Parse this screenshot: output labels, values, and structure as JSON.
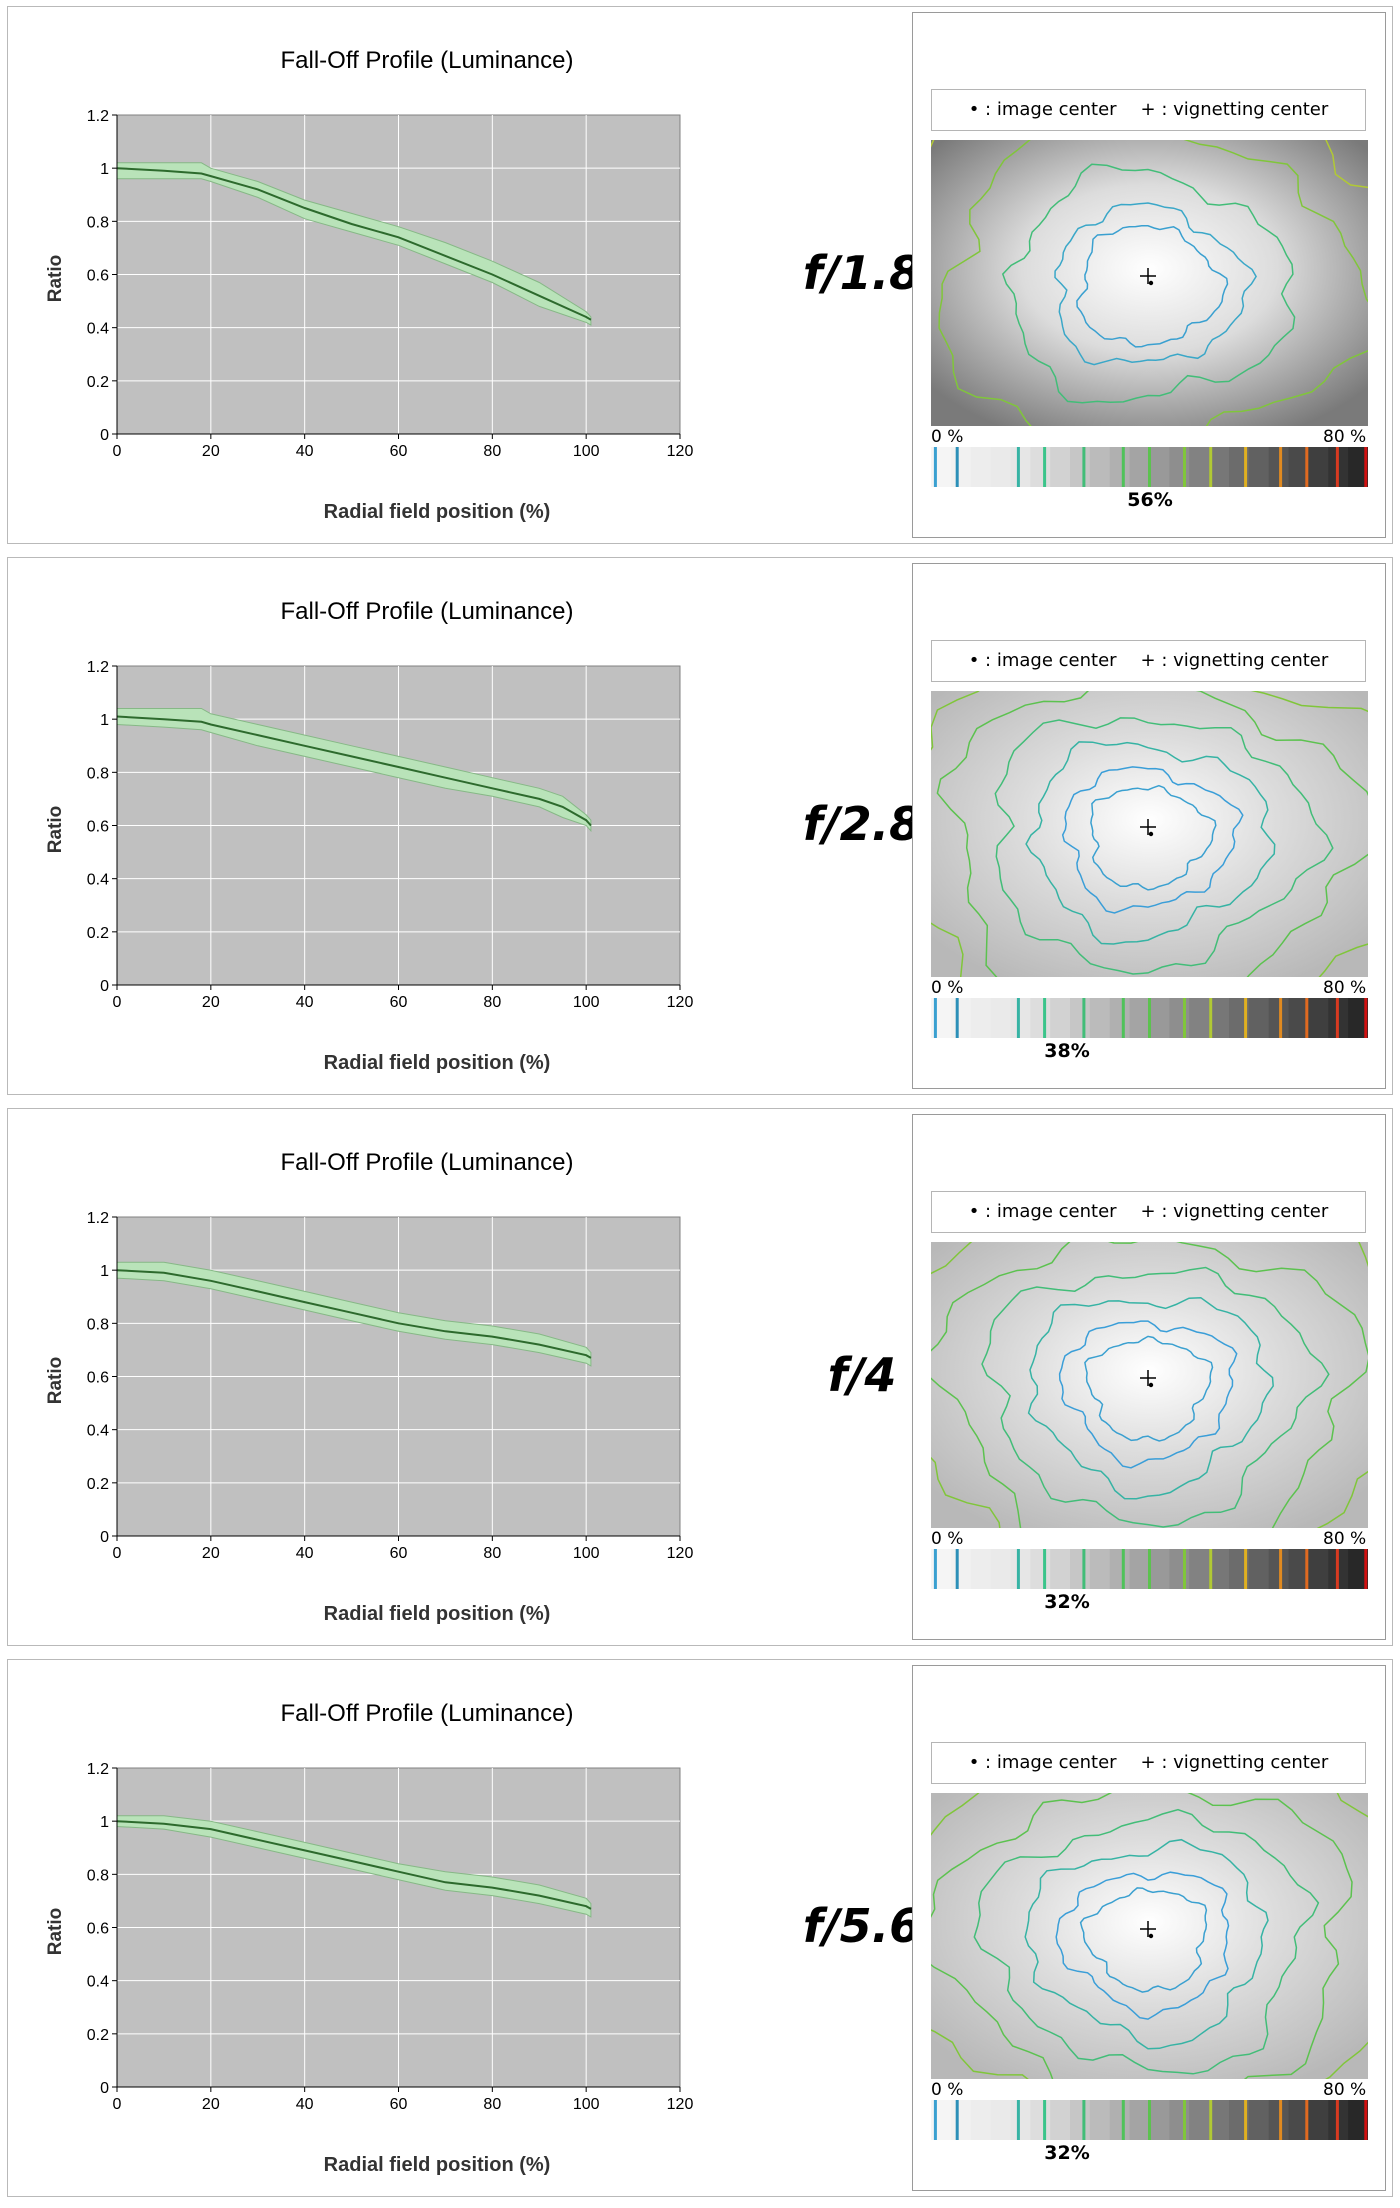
{
  "legend": {
    "image_center": "• : image center",
    "vignetting_center": "+ : vignetting center"
  },
  "colorbar": {
    "min_label": "0 %",
    "max_label": "80 %"
  },
  "colors": {
    "plot_bg": "#c0c0c0",
    "band": "#b9e3b9",
    "line": "#2d6a2d",
    "gridline": "#ffffff"
  },
  "panels": [
    {
      "aperture": "f/1.8",
      "vignetting_percent": "56%"
    },
    {
      "aperture": "f/2.8",
      "vignetting_percent": "38%"
    },
    {
      "aperture": "f/4",
      "vignetting_percent": "32%"
    },
    {
      "aperture": "f/5.6",
      "vignetting_percent": "32%"
    }
  ],
  "chart_data": [
    {
      "type": "line",
      "title": "Fall-Off Profile (Luminance)",
      "xlabel": "Radial field position (%)",
      "ylabel": "Ratio",
      "xlim": [
        0,
        120
      ],
      "ylim": [
        0,
        1.2
      ],
      "xticks": [
        0,
        20,
        40,
        60,
        80,
        100,
        120
      ],
      "yticks": [
        0,
        0.2,
        0.4,
        0.6,
        0.8,
        1,
        1.2
      ],
      "grid": true,
      "x": [
        0,
        10,
        18,
        20,
        30,
        40,
        50,
        60,
        70,
        80,
        90,
        100,
        101
      ],
      "series": [
        {
          "values": [
            1.0,
            0.99,
            0.98,
            0.97,
            0.92,
            0.85,
            0.79,
            0.74,
            0.67,
            0.6,
            0.52,
            0.44,
            0.43
          ]
        },
        {
          "values": [
            1.02,
            1.02,
            1.02,
            1.0,
            0.95,
            0.88,
            0.83,
            0.78,
            0.72,
            0.65,
            0.57,
            0.46,
            0.44
          ]
        },
        {
          "values": [
            0.96,
            0.96,
            0.96,
            0.95,
            0.89,
            0.81,
            0.76,
            0.71,
            0.64,
            0.57,
            0.48,
            0.42,
            0.41
          ]
        }
      ]
    },
    {
      "type": "line",
      "title": "Fall-Off Profile (Luminance)",
      "xlabel": "Radial field position (%)",
      "ylabel": "Ratio",
      "xlim": [
        0,
        120
      ],
      "ylim": [
        0,
        1.2
      ],
      "xticks": [
        0,
        20,
        40,
        60,
        80,
        100,
        120
      ],
      "yticks": [
        0,
        0.2,
        0.4,
        0.6,
        0.8,
        1,
        1.2
      ],
      "grid": true,
      "x": [
        0,
        10,
        18,
        20,
        30,
        40,
        50,
        60,
        70,
        80,
        90,
        95,
        100,
        101
      ],
      "series": [
        {
          "values": [
            1.01,
            1.0,
            0.99,
            0.98,
            0.94,
            0.9,
            0.86,
            0.82,
            0.78,
            0.74,
            0.7,
            0.67,
            0.62,
            0.6
          ]
        },
        {
          "values": [
            1.04,
            1.04,
            1.04,
            1.02,
            0.98,
            0.94,
            0.9,
            0.86,
            0.82,
            0.78,
            0.74,
            0.71,
            0.64,
            0.62
          ]
        },
        {
          "values": [
            0.98,
            0.97,
            0.96,
            0.95,
            0.9,
            0.86,
            0.82,
            0.78,
            0.74,
            0.71,
            0.67,
            0.63,
            0.6,
            0.58
          ]
        }
      ]
    },
    {
      "type": "line",
      "title": "Fall-Off Profile (Luminance)",
      "xlabel": "Radial field position (%)",
      "ylabel": "Ratio",
      "xlim": [
        0,
        120
      ],
      "ylim": [
        0,
        1.2
      ],
      "xticks": [
        0,
        20,
        40,
        60,
        80,
        100,
        120
      ],
      "yticks": [
        0,
        0.2,
        0.4,
        0.6,
        0.8,
        1,
        1.2
      ],
      "grid": true,
      "x": [
        0,
        10,
        20,
        30,
        40,
        50,
        60,
        70,
        80,
        90,
        100,
        101
      ],
      "series": [
        {
          "values": [
            1.0,
            0.99,
            0.96,
            0.92,
            0.88,
            0.84,
            0.8,
            0.77,
            0.75,
            0.72,
            0.68,
            0.67
          ]
        },
        {
          "values": [
            1.03,
            1.03,
            1.0,
            0.96,
            0.92,
            0.88,
            0.84,
            0.81,
            0.79,
            0.76,
            0.71,
            0.69
          ]
        },
        {
          "values": [
            0.97,
            0.96,
            0.93,
            0.89,
            0.85,
            0.81,
            0.77,
            0.74,
            0.72,
            0.69,
            0.65,
            0.64
          ]
        }
      ]
    },
    {
      "type": "line",
      "title": "Fall-Off Profile (Luminance)",
      "xlabel": "Radial field position (%)",
      "ylabel": "Ratio",
      "xlim": [
        0,
        120
      ],
      "ylim": [
        0,
        1.2
      ],
      "xticks": [
        0,
        20,
        40,
        60,
        80,
        100,
        120
      ],
      "yticks": [
        0,
        0.2,
        0.4,
        0.6,
        0.8,
        1,
        1.2
      ],
      "grid": true,
      "x": [
        0,
        10,
        20,
        30,
        40,
        50,
        60,
        70,
        80,
        90,
        100,
        101
      ],
      "series": [
        {
          "values": [
            1.0,
            0.99,
            0.97,
            0.93,
            0.89,
            0.85,
            0.81,
            0.77,
            0.75,
            0.72,
            0.68,
            0.67
          ]
        },
        {
          "values": [
            1.02,
            1.02,
            1.0,
            0.96,
            0.92,
            0.88,
            0.84,
            0.81,
            0.79,
            0.76,
            0.71,
            0.69
          ]
        },
        {
          "values": [
            0.98,
            0.97,
            0.94,
            0.9,
            0.86,
            0.82,
            0.78,
            0.74,
            0.72,
            0.69,
            0.65,
            0.64
          ]
        }
      ]
    }
  ]
}
